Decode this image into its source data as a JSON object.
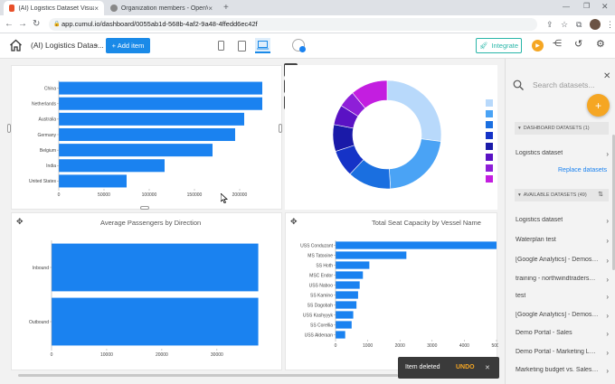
{
  "browser": {
    "tabs": [
      {
        "title": "(AI) Logistics Dataset Visualizatio",
        "active": true
      },
      {
        "title": "Organization members - OpenV",
        "active": false
      }
    ],
    "url": "app.cumul.io/dashboard/0055ab1d-568b-4af2-9a48-4ffedd6ec42f"
  },
  "toolbar": {
    "dashboard_title": "(AI) Logistics Datas...",
    "add_item_label": "+ Add item",
    "integrate_label": "Integrate"
  },
  "widgets": {
    "tool_icons": [
      "gear-icon",
      "copy-icon",
      "trash-icon"
    ],
    "passengers_title": "Average Passengers by Direction",
    "seat_title": "Total Seat Capacity by Vessel Name"
  },
  "chart_data": [
    {
      "type": "bar",
      "orientation": "horizontal",
      "categories": [
        "China",
        "Netherlands",
        "Australia",
        "Germany",
        "Belgium",
        "India",
        "United States"
      ],
      "values": [
        225000,
        225000,
        205000,
        195000,
        170000,
        117000,
        75000
      ],
      "xticks": [
        "0",
        "50000",
        "100000",
        "150000",
        "200000"
      ],
      "xlim": [
        0,
        260000
      ],
      "color": "#1a82f0"
    },
    {
      "type": "pie",
      "style": "donut",
      "values": [
        27,
        22,
        13,
        8,
        8,
        6,
        5,
        11
      ],
      "colors": [
        "#b8d9fb",
        "#4aa3f5",
        "#1a6fe0",
        "#1533c7",
        "#1a1aa8",
        "#5a12c4",
        "#8e1fd8",
        "#c31ee0"
      ],
      "legend_colors": [
        "#b8d9fb",
        "#4aa3f5",
        "#1a6fe0",
        "#1533c7",
        "#1a1aa8",
        "#5a12c4",
        "#8e1fd8",
        "#c31ee0"
      ]
    },
    {
      "type": "bar",
      "orientation": "horizontal",
      "title": "Average Passengers by Direction",
      "categories": [
        "Inbound",
        "Outbound"
      ],
      "values": [
        37500,
        37500
      ],
      "xticks": [
        "0",
        "10000",
        "20000",
        "30000"
      ],
      "xlim": [
        0,
        42000
      ],
      "color": "#1a82f0"
    },
    {
      "type": "bar",
      "orientation": "horizontal",
      "title": "Total Seat Capacity by Vessel Name",
      "categories": [
        "USS Conduzant",
        "MS Tatooine",
        "SS Hoth",
        "MSC Endor",
        "USS Naboo",
        "SS Kamino",
        "SS Dagobah",
        "USS Kashyyyk",
        "SS Corellia",
        "USS Alderaan"
      ],
      "values": [
        5000,
        2200,
        1050,
        850,
        750,
        700,
        650,
        550,
        500,
        300
      ],
      "xticks": [
        "0",
        "1000",
        "2000",
        "3000",
        "4000",
        "5000"
      ],
      "xlim": [
        0,
        5000
      ],
      "color": "#1a82f0"
    }
  ],
  "sidebar": {
    "search_placeholder": "Search datasets...",
    "add_icon": "plus-icon",
    "dashboard_header": "DASHBOARD DATASETS (1)",
    "dashboard_items": [
      "Logistics dataset"
    ],
    "replace_label": "Replace datasets",
    "available_header": "AVAILABLE DATASETS (49)",
    "available_items": [
      "Logistics dataset",
      "Waterplan test",
      "[Google Analytics] - Demoset...",
      "training - northwindtraders_c...",
      "test",
      "[Google Analytics] - Demoset...",
      "Demo Portal - Sales",
      "Demo Portal - Marketing Lea...",
      "Marketing budget vs. Sales o..."
    ]
  },
  "toast": {
    "message": "Item deleted",
    "undo_label": "UNDO",
    "close_label": "✕"
  }
}
